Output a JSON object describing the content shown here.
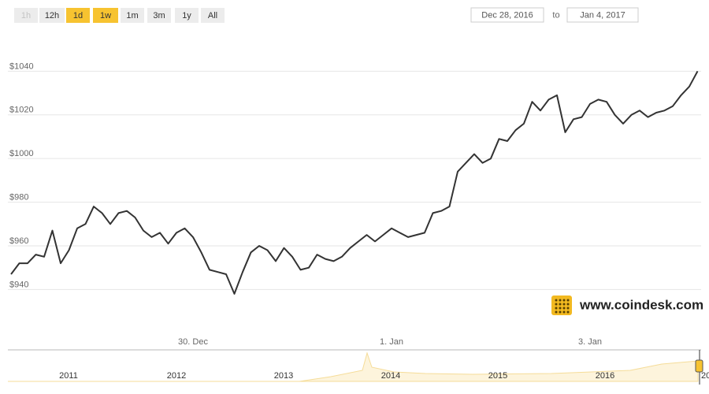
{
  "ui": {
    "buttons": [
      {
        "label": "1h",
        "state": "disabled"
      },
      {
        "label": "12h",
        "state": "normal"
      },
      {
        "label": "1d",
        "state": "active"
      },
      {
        "label": "1w",
        "state": "active"
      },
      {
        "label": "1m",
        "state": "normal"
      },
      {
        "label": "3m",
        "state": "normal"
      },
      {
        "label": "1y",
        "state": "normal"
      },
      {
        "label": "All",
        "state": "normal"
      }
    ],
    "date_from": "Dec 28, 2016",
    "date_sep": "to",
    "date_to": "Jan 4, 2017",
    "watermark": "www.coindesk.com",
    "navigator_labels": [
      "2011",
      "2012",
      "2013",
      "2014",
      "2015",
      "2016",
      "20"
    ]
  },
  "chart_data": {
    "type": "line",
    "color": "#333333",
    "grid": true,
    "categories": [
      null,
      null,
      null,
      null,
      null,
      null,
      null,
      null,
      null,
      null,
      null,
      null,
      null,
      null,
      null,
      null,
      null,
      null,
      null,
      null,
      null,
      null,
      "30. Dec",
      null,
      null,
      null,
      null,
      null,
      null,
      null,
      null,
      null,
      null,
      null,
      null,
      null,
      null,
      null,
      null,
      null,
      null,
      null,
      null,
      null,
      null,
      null,
      "1. Jan",
      null,
      null,
      null,
      null,
      null,
      null,
      null,
      null,
      null,
      null,
      null,
      null,
      null,
      null,
      null,
      null,
      null,
      null,
      null,
      null,
      null,
      null,
      null,
      "3. Jan",
      null,
      null,
      null,
      null,
      null,
      null,
      null,
      null,
      null,
      null,
      null,
      null,
      null
    ],
    "values": [
      947,
      952,
      952,
      956,
      955,
      967,
      952,
      958,
      968,
      970,
      978,
      975,
      970,
      975,
      976,
      973,
      967,
      964,
      966,
      961,
      966,
      968,
      964,
      957,
      949,
      948,
      947,
      938,
      948,
      957,
      960,
      958,
      953,
      959,
      955,
      949,
      950,
      956,
      954,
      953,
      955,
      959,
      962,
      965,
      962,
      965,
      968,
      966,
      964,
      965,
      966,
      975,
      976,
      978,
      994,
      998,
      1002,
      998,
      1000,
      1009,
      1008,
      1013,
      1016,
      1026,
      1022,
      1027,
      1029,
      1012,
      1018,
      1019,
      1025,
      1027,
      1026,
      1020,
      1016,
      1020,
      1022,
      1019,
      1021,
      1022,
      1024,
      1029,
      1033,
      1040
    ],
    "ylim": [
      921,
      1060
    ],
    "yticks": [
      {
        "value": 940,
        "label": "$940"
      },
      {
        "value": 960,
        "label": "$960"
      },
      {
        "value": 980,
        "label": "$980"
      },
      {
        "value": 1000,
        "label": "$1000"
      },
      {
        "value": 1020,
        "label": "$1020"
      },
      {
        "value": 1040,
        "label": "$1040"
      }
    ]
  }
}
